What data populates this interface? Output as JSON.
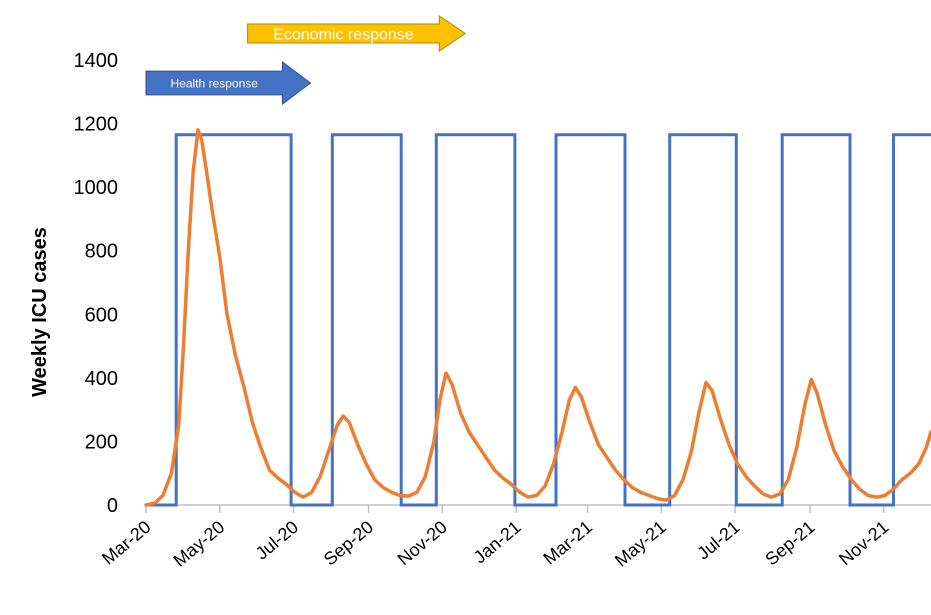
{
  "chart_data": {
    "type": "line",
    "title": "",
    "xlabel": "",
    "ylabel": "Weekly ICU cases",
    "ylim": [
      0,
      1400
    ],
    "yticks": [
      0,
      200,
      400,
      600,
      800,
      1000,
      1200,
      1400
    ],
    "xlim": [
      "2020-03-01",
      "2021-12-10"
    ],
    "xticks": [
      {
        "label": "Mar-20",
        "date": "2020-03-01"
      },
      {
        "label": "May-20",
        "date": "2020-05-01"
      },
      {
        "label": "Jul-20",
        "date": "2020-07-01"
      },
      {
        "label": "Sep-20",
        "date": "2020-09-01"
      },
      {
        "label": "Nov-20",
        "date": "2020-11-01"
      },
      {
        "label": "Jan-21",
        "date": "2021-01-01"
      },
      {
        "label": "Mar-21",
        "date": "2021-03-01"
      },
      {
        "label": "May-21",
        "date": "2021-05-01"
      },
      {
        "label": "Jul-21",
        "date": "2021-07-01"
      },
      {
        "label": "Sep-21",
        "date": "2021-09-01"
      },
      {
        "label": "Nov-21",
        "date": "2021-11-01"
      }
    ],
    "grid": false,
    "legend": "none",
    "series": [
      {
        "color": "#4472C4",
        "step": true,
        "points": [
          [
            "2020-03-01",
            0
          ],
          [
            "2020-03-26",
            0
          ],
          [
            "2020-03-26",
            1165
          ],
          [
            "2020-06-29",
            1165
          ],
          [
            "2020-06-29",
            0
          ],
          [
            "2020-08-02",
            0
          ],
          [
            "2020-08-02",
            1165
          ],
          [
            "2020-09-28",
            1165
          ],
          [
            "2020-09-28",
            0
          ],
          [
            "2020-10-27",
            0
          ],
          [
            "2020-10-27",
            1165
          ],
          [
            "2020-12-31",
            1165
          ],
          [
            "2020-12-31",
            0
          ],
          [
            "2021-02-03",
            0
          ],
          [
            "2021-02-03",
            1165
          ],
          [
            "2021-04-01",
            1165
          ],
          [
            "2021-04-01",
            0
          ],
          [
            "2021-05-08",
            0
          ],
          [
            "2021-05-08",
            1165
          ],
          [
            "2021-07-02",
            1165
          ],
          [
            "2021-07-02",
            0
          ],
          [
            "2021-08-09",
            0
          ],
          [
            "2021-08-09",
            1165
          ],
          [
            "2021-10-04",
            1165
          ],
          [
            "2021-10-04",
            0
          ],
          [
            "2021-11-09",
            0
          ],
          [
            "2021-11-09",
            1165
          ],
          [
            "2021-12-10",
            1165
          ]
        ]
      },
      {
        "color": "#ED7D31",
        "points": [
          [
            "2020-03-01",
            0
          ],
          [
            "2020-03-08",
            5
          ],
          [
            "2020-03-15",
            30
          ],
          [
            "2020-03-22",
            100
          ],
          [
            "2020-03-28",
            250
          ],
          [
            "2020-04-01",
            500
          ],
          [
            "2020-04-05",
            800
          ],
          [
            "2020-04-09",
            1050
          ],
          [
            "2020-04-13",
            1180
          ],
          [
            "2020-04-16",
            1150
          ],
          [
            "2020-04-20",
            1050
          ],
          [
            "2020-04-25",
            920
          ],
          [
            "2020-05-01",
            780
          ],
          [
            "2020-05-07",
            600
          ],
          [
            "2020-05-14",
            470
          ],
          [
            "2020-05-21",
            370
          ],
          [
            "2020-05-28",
            260
          ],
          [
            "2020-06-04",
            180
          ],
          [
            "2020-06-11",
            110
          ],
          [
            "2020-06-18",
            85
          ],
          [
            "2020-06-25",
            65
          ],
          [
            "2020-07-02",
            40
          ],
          [
            "2020-07-09",
            25
          ],
          [
            "2020-07-16",
            40
          ],
          [
            "2020-07-23",
            90
          ],
          [
            "2020-07-30",
            170
          ],
          [
            "2020-08-06",
            250
          ],
          [
            "2020-08-11",
            280
          ],
          [
            "2020-08-16",
            260
          ],
          [
            "2020-08-23",
            190
          ],
          [
            "2020-08-30",
            130
          ],
          [
            "2020-09-06",
            80
          ],
          [
            "2020-09-13",
            55
          ],
          [
            "2020-09-20",
            40
          ],
          [
            "2020-09-27",
            30
          ],
          [
            "2020-10-04",
            28
          ],
          [
            "2020-10-11",
            40
          ],
          [
            "2020-10-18",
            90
          ],
          [
            "2020-10-25",
            200
          ],
          [
            "2020-10-30",
            330
          ],
          [
            "2020-11-04",
            415
          ],
          [
            "2020-11-09",
            380
          ],
          [
            "2020-11-16",
            290
          ],
          [
            "2020-11-23",
            230
          ],
          [
            "2020-11-30",
            190
          ],
          [
            "2020-12-07",
            150
          ],
          [
            "2020-12-14",
            110
          ],
          [
            "2020-12-21",
            85
          ],
          [
            "2020-12-28",
            65
          ],
          [
            "2021-01-04",
            40
          ],
          [
            "2021-01-11",
            25
          ],
          [
            "2021-01-18",
            30
          ],
          [
            "2021-01-25",
            60
          ],
          [
            "2021-02-01",
            130
          ],
          [
            "2021-02-08",
            230
          ],
          [
            "2021-02-14",
            330
          ],
          [
            "2021-02-19",
            370
          ],
          [
            "2021-02-24",
            340
          ],
          [
            "2021-03-03",
            260
          ],
          [
            "2021-03-10",
            190
          ],
          [
            "2021-03-17",
            150
          ],
          [
            "2021-03-24",
            110
          ],
          [
            "2021-03-31",
            80
          ],
          [
            "2021-04-07",
            55
          ],
          [
            "2021-04-14",
            40
          ],
          [
            "2021-04-21",
            30
          ],
          [
            "2021-04-28",
            20
          ],
          [
            "2021-05-05",
            15
          ],
          [
            "2021-05-12",
            30
          ],
          [
            "2021-05-19",
            80
          ],
          [
            "2021-05-26",
            170
          ],
          [
            "2021-06-01",
            290
          ],
          [
            "2021-06-07",
            385
          ],
          [
            "2021-06-12",
            360
          ],
          [
            "2021-06-19",
            270
          ],
          [
            "2021-06-26",
            190
          ],
          [
            "2021-07-03",
            130
          ],
          [
            "2021-07-10",
            90
          ],
          [
            "2021-07-17",
            60
          ],
          [
            "2021-07-24",
            35
          ],
          [
            "2021-07-31",
            25
          ],
          [
            "2021-08-07",
            35
          ],
          [
            "2021-08-14",
            80
          ],
          [
            "2021-08-21",
            180
          ],
          [
            "2021-08-28",
            320
          ],
          [
            "2021-09-02",
            395
          ],
          [
            "2021-09-07",
            350
          ],
          [
            "2021-09-14",
            250
          ],
          [
            "2021-09-21",
            170
          ],
          [
            "2021-09-28",
            120
          ],
          [
            "2021-10-05",
            80
          ],
          [
            "2021-10-12",
            50
          ],
          [
            "2021-10-19",
            30
          ],
          [
            "2021-10-26",
            25
          ],
          [
            "2021-11-02",
            30
          ],
          [
            "2021-11-09",
            50
          ],
          [
            "2021-11-16",
            80
          ],
          [
            "2021-11-23",
            100
          ],
          [
            "2021-11-30",
            130
          ],
          [
            "2021-12-06",
            180
          ],
          [
            "2021-12-10",
            230
          ]
        ]
      }
    ],
    "annotations": [
      {
        "text": "Health response",
        "color": "#4472C4",
        "start": "2020-03-01",
        "end": "2020-07-15"
      },
      {
        "text": "Economic response",
        "color": "#FFC000",
        "start": "2020-05-24",
        "end": "2020-11-20"
      }
    ]
  }
}
